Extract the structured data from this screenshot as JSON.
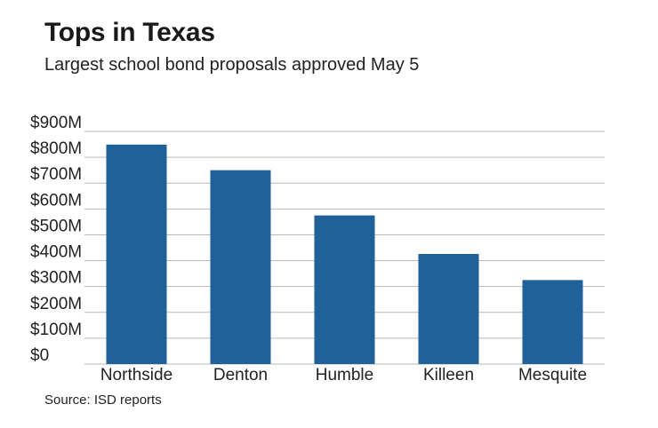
{
  "title": "Tops in Texas",
  "subtitle": "Largest school bond proposals approved May 5",
  "source": "Source: ISD reports",
  "chart_data": {
    "type": "bar",
    "title": "Tops in Texas",
    "subtitle": "Largest school bond proposals approved May 5",
    "categories": [
      "Northside",
      "Denton",
      "Humble",
      "Killeen",
      "Mesquite"
    ],
    "values": [
      849,
      750,
      575,
      426,
      325
    ],
    "unit": "$M",
    "yticks": [
      "$0",
      "$100M",
      "$200M",
      "$300M",
      "$400M",
      "$500M",
      "$600M",
      "$700M",
      "$800M",
      "$900M"
    ],
    "ylim": [
      0,
      900
    ],
    "grid": true,
    "bar_color": "#1f6198",
    "grid_color": "#b9b9b9"
  }
}
